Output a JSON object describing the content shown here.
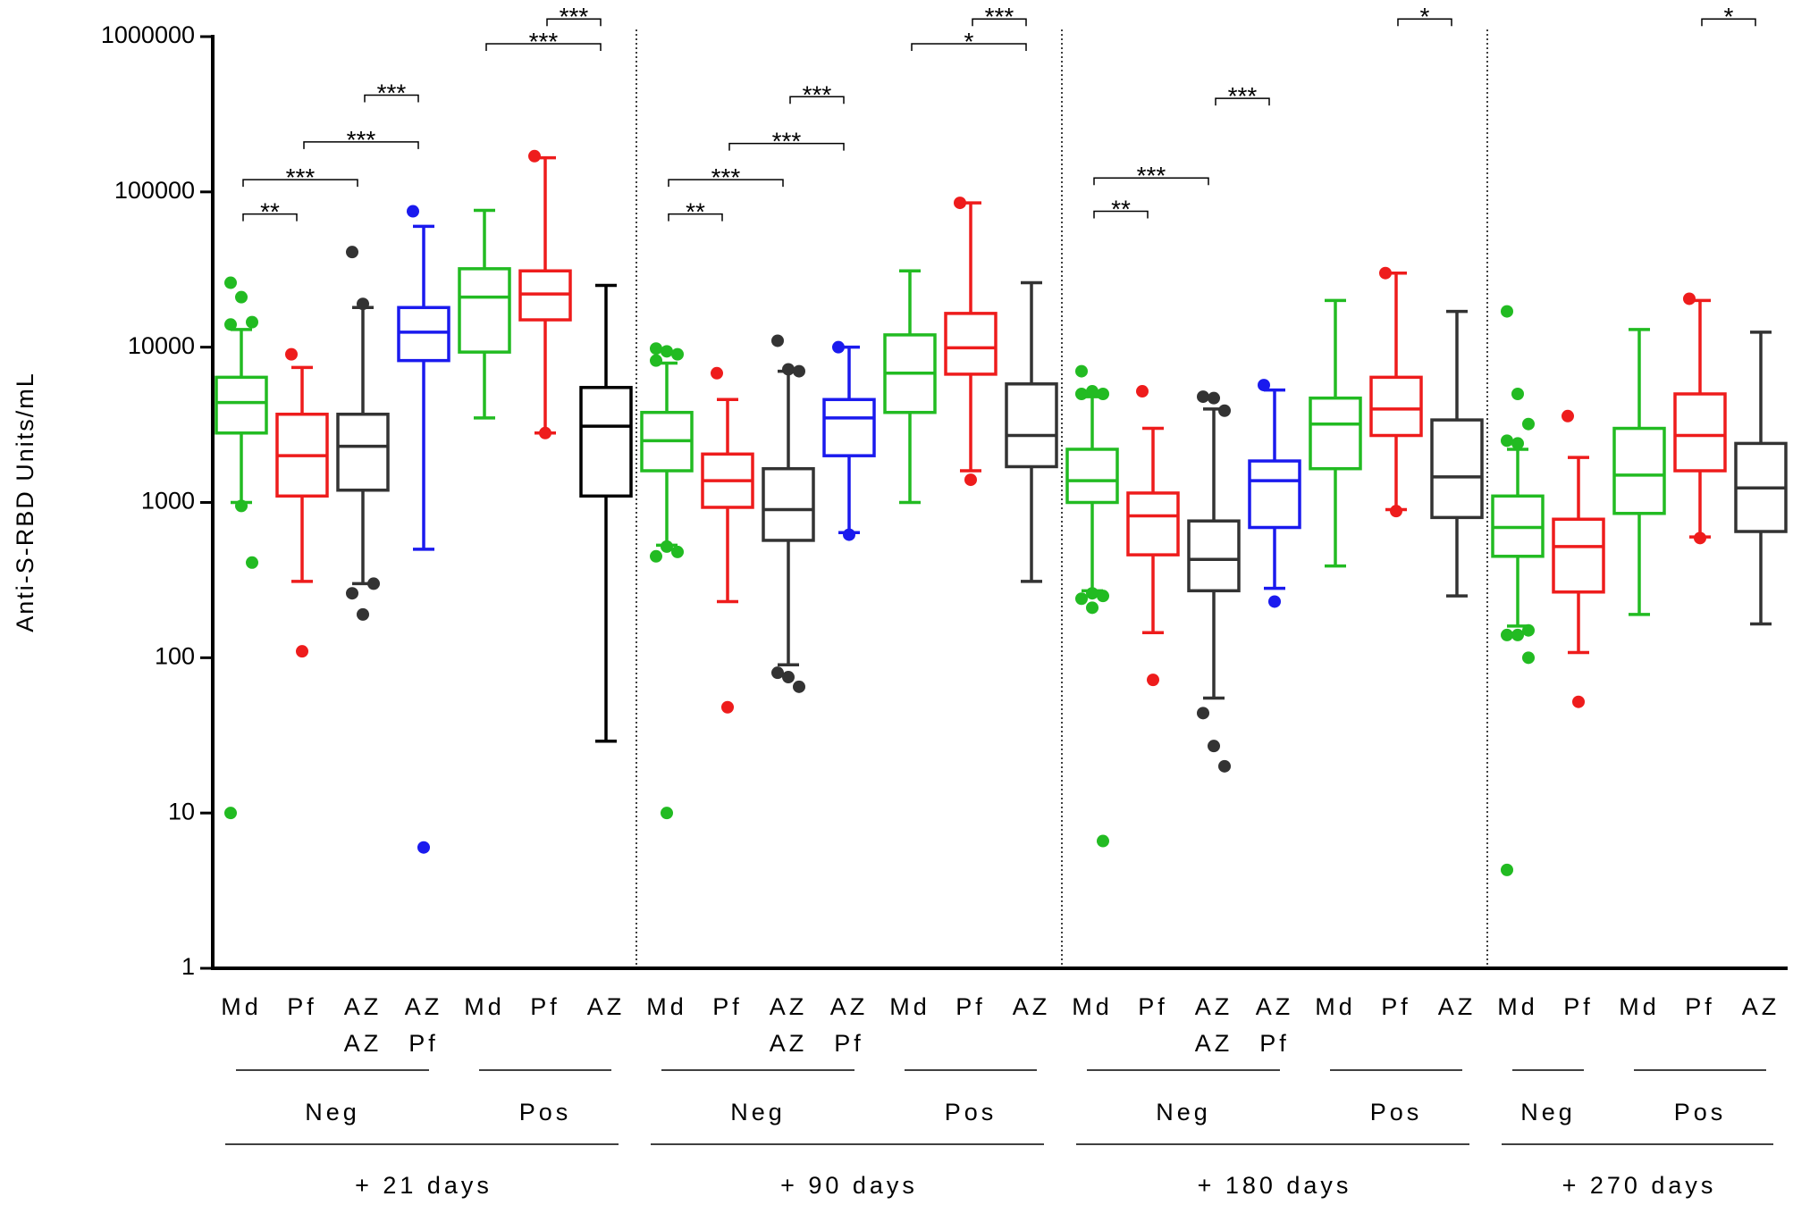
{
  "chart_data": {
    "type": "box",
    "y_label": "Anti-S-RBD Units/mL",
    "log_scale": true,
    "ylim": [
      1,
      1000000
    ],
    "yticks": [
      1,
      10,
      100,
      1000,
      10000,
      100000,
      1000000
    ],
    "periods": [
      {
        "label": "+ 21 days",
        "groups": [
          {
            "label": "Neg",
            "boxes": [
              {
                "label": [
                  "Md"
                ],
                "color": "#22bb22",
                "whislo": 1000,
                "q1": 2800,
                "med": 4400,
                "q3": 6400,
                "whishi": 13000,
                "fliers": [
                  26000,
                  21000,
                  14500,
                  14000,
                  950,
                  410,
                  10
                ]
              },
              {
                "label": [
                  "Pf"
                ],
                "color": "#ee1c1c",
                "whislo": 310,
                "q1": 1100,
                "med": 2000,
                "q3": 3700,
                "whishi": 7400,
                "fliers": [
                  9000,
                  110
                ]
              },
              {
                "label": [
                  "AZ",
                  "AZ"
                ],
                "color": "#333333",
                "whislo": 300,
                "q1": 1200,
                "med": 2300,
                "q3": 3700,
                "whishi": 18000,
                "fliers": [
                  41000,
                  19000,
                  300,
                  260,
                  190
                ]
              },
              {
                "label": [
                  "AZ",
                  "Pf"
                ],
                "color": "#1a1aee",
                "whislo": 500,
                "q1": 8200,
                "med": 12500,
                "q3": 18000,
                "whishi": 60000,
                "fliers": [
                  75000,
                  6
                ]
              }
            ],
            "comparisons": [
              {
                "between": [
                  0,
                  1
                ],
                "y": 72000,
                "label": "**"
              },
              {
                "between": [
                  0,
                  2
                ],
                "y": 120000,
                "label": "***"
              },
              {
                "between": [
                  1,
                  3
                ],
                "y": 210000,
                "label": "***"
              },
              {
                "between": [
                  2,
                  3
                ],
                "y": 420000,
                "label": "***"
              }
            ]
          },
          {
            "label": "Pos",
            "boxes": [
              {
                "label": [
                  "Md"
                ],
                "color": "#22bb22",
                "whislo": 3500,
                "q1": 9300,
                "med": 21000,
                "q3": 32000,
                "whishi": 76000,
                "fliers": []
              },
              {
                "label": [
                  "Pf"
                ],
                "color": "#ee1c1c",
                "whislo": 2800,
                "q1": 15000,
                "med": 22000,
                "q3": 31000,
                "whishi": 166000,
                "fliers": [
                  170000,
                  2800
                ]
              },
              {
                "label": [
                  "AZ"
                ],
                "color": "#000000",
                "whislo": 29,
                "q1": 1100,
                "med": 3100,
                "q3": 5500,
                "whishi": 25000,
                "fliers": []
              }
            ],
            "comparisons": [
              {
                "between": [
                  0,
                  2
                ],
                "y": 900000,
                "label": "***"
              },
              {
                "between": [
                  1,
                  2
                ],
                "y": 1300000,
                "label": "***"
              }
            ]
          }
        ]
      },
      {
        "label": "+ 90 days",
        "groups": [
          {
            "label": "Neg",
            "boxes": [
              {
                "label": [
                  "Md"
                ],
                "color": "#22bb22",
                "whislo": 530,
                "q1": 1600,
                "med": 2500,
                "q3": 3800,
                "whishi": 7900,
                "fliers": [
                  9800,
                  9400,
                  9000,
                  8200,
                  520,
                  480,
                  450,
                  10
                ]
              },
              {
                "label": [
                  "Pf"
                ],
                "color": "#ee1c1c",
                "whislo": 230,
                "q1": 930,
                "med": 1380,
                "q3": 2050,
                "whishi": 4600,
                "fliers": [
                  6800,
                  48
                ]
              },
              {
                "label": [
                  "AZ",
                  "AZ"
                ],
                "color": "#333333",
                "whislo": 90,
                "q1": 570,
                "med": 900,
                "q3": 1650,
                "whishi": 7000,
                "fliers": [
                  11000,
                  7200,
                  7000,
                  80,
                  75,
                  65
                ]
              },
              {
                "label": [
                  "AZ",
                  "Pf"
                ],
                "color": "#1a1aee",
                "whislo": 640,
                "q1": 2000,
                "med": 3500,
                "q3": 4600,
                "whishi": 10000,
                "fliers": [
                  10000,
                  620
                ]
              }
            ],
            "comparisons": [
              {
                "between": [
                  0,
                  1
                ],
                "y": 72000,
                "label": "**"
              },
              {
                "between": [
                  0,
                  2
                ],
                "y": 120000,
                "label": "***"
              },
              {
                "between": [
                  1,
                  3
                ],
                "y": 205000,
                "label": "***"
              },
              {
                "between": [
                  2,
                  3
                ],
                "y": 410000,
                "label": "***"
              }
            ]
          },
          {
            "label": "Pos",
            "boxes": [
              {
                "label": [
                  "Md"
                ],
                "color": "#22bb22",
                "whislo": 1000,
                "q1": 3800,
                "med": 6800,
                "q3": 12000,
                "whishi": 31000,
                "fliers": []
              },
              {
                "label": [
                  "Pf"
                ],
                "color": "#ee1c1c",
                "whislo": 1600,
                "q1": 6700,
                "med": 9900,
                "q3": 16500,
                "whishi": 85000,
                "fliers": [
                  85000,
                  1400
                ]
              },
              {
                "label": [
                  "AZ"
                ],
                "color": "#333333",
                "whislo": 310,
                "q1": 1700,
                "med": 2700,
                "q3": 5800,
                "whishi": 26000,
                "fliers": []
              }
            ],
            "comparisons": [
              {
                "between": [
                  0,
                  2
                ],
                "y": 900000,
                "label": "*"
              },
              {
                "between": [
                  1,
                  2
                ],
                "y": 1300000,
                "label": "***"
              }
            ]
          }
        ]
      },
      {
        "label": "+ 180 days",
        "groups": [
          {
            "label": "Neg",
            "boxes": [
              {
                "label": [
                  "Md"
                ],
                "color": "#22bb22",
                "whislo": 270,
                "q1": 1000,
                "med": 1380,
                "q3": 2200,
                "whishi": 4800,
                "fliers": [
                  7000,
                  5200,
                  5000,
                  5000,
                  260,
                  250,
                  240,
                  210,
                  6.6
                ]
              },
              {
                "label": [
                  "Pf"
                ],
                "color": "#ee1c1c",
                "whislo": 145,
                "q1": 460,
                "med": 820,
                "q3": 1150,
                "whishi": 3000,
                "fliers": [
                  5200,
                  72
                ]
              },
              {
                "label": [
                  "AZ",
                  "AZ"
                ],
                "color": "#333333",
                "whislo": 55,
                "q1": 270,
                "med": 430,
                "q3": 760,
                "whishi": 4000,
                "fliers": [
                  4800,
                  4700,
                  3900,
                  44,
                  27,
                  20
                ]
              },
              {
                "label": [
                  "AZ",
                  "Pf"
                ],
                "color": "#1a1aee",
                "whislo": 280,
                "q1": 690,
                "med": 1380,
                "q3": 1850,
                "whishi": 5300,
                "fliers": [
                  5700,
                  230
                ]
              }
            ],
            "comparisons": [
              {
                "between": [
                  0,
                  1
                ],
                "y": 75000,
                "label": "**"
              },
              {
                "between": [
                  0,
                  2
                ],
                "y": 123000,
                "label": "***"
              },
              {
                "between": [
                  2,
                  3
                ],
                "y": 400000,
                "label": "***"
              }
            ]
          },
          {
            "label": "Pos",
            "boxes": [
              {
                "label": [
                  "Md"
                ],
                "color": "#22bb22",
                "whislo": 390,
                "q1": 1650,
                "med": 3200,
                "q3": 4700,
                "whishi": 20000,
                "fliers": []
              },
              {
                "label": [
                  "Pf"
                ],
                "color": "#ee1c1c",
                "whislo": 900,
                "q1": 2700,
                "med": 4000,
                "q3": 6400,
                "whishi": 30000,
                "fliers": [
                  30000,
                  880
                ]
              },
              {
                "label": [
                  "AZ"
                ],
                "color": "#333333",
                "whislo": 250,
                "q1": 800,
                "med": 1460,
                "q3": 3400,
                "whishi": 17000,
                "fliers": []
              }
            ],
            "comparisons": [
              {
                "between": [
                  1,
                  2
                ],
                "y": 1300000,
                "label": "*"
              }
            ]
          }
        ]
      },
      {
        "label": "+ 270 days",
        "groups": [
          {
            "label": "Neg",
            "boxes": [
              {
                "label": [
                  "Md"
                ],
                "color": "#22bb22",
                "whislo": 160,
                "q1": 450,
                "med": 690,
                "q3": 1100,
                "whishi": 2200,
                "fliers": [
                  17000,
                  5000,
                  3200,
                  2500,
                  2400,
                  150,
                  140,
                  140,
                  100,
                  4.3
                ]
              },
              {
                "label": [
                  "Pf"
                ],
                "color": "#ee1c1c",
                "whislo": 108,
                "q1": 265,
                "med": 520,
                "q3": 780,
                "whishi": 1950,
                "fliers": [
                  3600,
                  52
                ]
              }
            ],
            "comparisons": []
          },
          {
            "label": "Pos",
            "boxes": [
              {
                "label": [
                  "Md"
                ],
                "color": "#22bb22",
                "whislo": 190,
                "q1": 850,
                "med": 1500,
                "q3": 3000,
                "whishi": 13000,
                "fliers": []
              },
              {
                "label": [
                  "Pf"
                ],
                "color": "#ee1c1c",
                "whislo": 600,
                "q1": 1600,
                "med": 2700,
                "q3": 5000,
                "whishi": 20000,
                "fliers": [
                  20500,
                  590
                ]
              },
              {
                "label": [
                  "AZ"
                ],
                "color": "#333333",
                "whislo": 165,
                "q1": 650,
                "med": 1240,
                "q3": 2400,
                "whishi": 12500,
                "fliers": []
              }
            ],
            "comparisons": [
              {
                "between": [
                  1,
                  2
                ],
                "y": 1300000,
                "label": "*"
              }
            ]
          }
        ]
      }
    ]
  }
}
